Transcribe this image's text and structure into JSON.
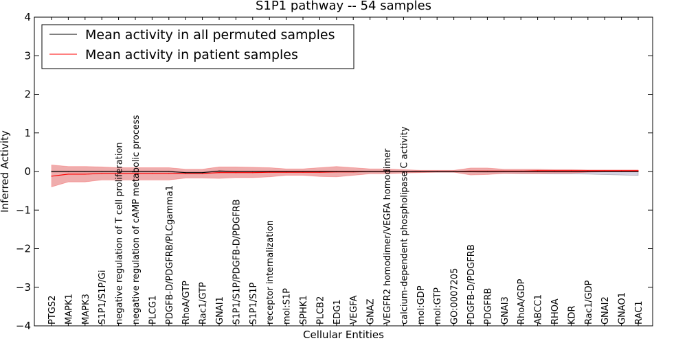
{
  "chart_data": {
    "type": "line",
    "title": "S1P1 pathway -- 54 samples",
    "xlabel": "Cellular Entities",
    "ylabel": "Inferred Activity",
    "ylim": [
      -4,
      4
    ],
    "yticks": [
      -4,
      -3,
      -2,
      -1,
      0,
      1,
      2,
      3,
      4
    ],
    "ytick_labels": [
      "−4",
      "−3",
      "−2",
      "−1",
      "0",
      "1",
      "2",
      "3",
      "4"
    ],
    "legend_position": "top-left",
    "categories": [
      "PTGS2",
      "MAPK1",
      "MAPK3",
      "S1P1/S1P/Gi",
      "negative regulation of T cell proliferation",
      "negative regulation of cAMP metabolic process",
      "PLCG1",
      "PDGFB-D/PDGFRB/PLCgamma1",
      "RhoA/GTP",
      "Rac1/GTP",
      "GNAI1",
      "S1P1/S1P/PDGFB-D/PDGFRB",
      "S1P1/S1P",
      "receptor internalization",
      "mol:S1P",
      "SPHK1",
      "PLCB2",
      "EDG1",
      "VEGFA",
      "GNAZ",
      "VEGFR2 homodimer/VEGFA homodimer",
      "calcium-dependent phospholipase C activity",
      "mol:GDP",
      "mol:GTP",
      "GO:0007205",
      "PDGFB-D/PDGFRB",
      "PDGFRB",
      "GNAI3",
      "RhoA/GDP",
      "ABCC1",
      "RHOA",
      "KDR",
      "Rac1/GDP",
      "GNAI2",
      "GNAO1",
      "RAC1"
    ],
    "series": [
      {
        "name": "Mean activity in all permuted samples",
        "color": "#000000",
        "band_color": "#b8b8d0",
        "values": [
          0,
          0,
          0,
          0,
          0,
          0,
          0,
          0,
          -0.03,
          -0.03,
          0.01,
          0,
          0,
          0,
          0,
          0,
          0,
          0,
          0,
          0,
          0,
          0,
          0,
          0,
          0,
          0,
          0,
          0,
          0,
          0,
          0,
          0,
          0,
          0,
          0,
          0
        ],
        "lower": [
          -0.02,
          -0.02,
          -0.02,
          -0.02,
          -0.02,
          -0.02,
          -0.02,
          -0.02,
          -0.06,
          -0.06,
          -0.02,
          -0.02,
          -0.02,
          -0.02,
          -0.02,
          -0.02,
          -0.02,
          -0.02,
          -0.02,
          -0.02,
          -0.02,
          -0.02,
          -0.02,
          -0.02,
          -0.02,
          -0.02,
          -0.03,
          -0.04,
          -0.05,
          -0.05,
          -0.06,
          -0.06,
          -0.07,
          -0.08,
          -0.09,
          -0.1
        ],
        "upper": [
          0.02,
          0.02,
          0.02,
          0.02,
          0.02,
          0.02,
          0.02,
          0.02,
          0.0,
          0.0,
          0.03,
          0.02,
          0.02,
          0.02,
          0.02,
          0.02,
          0.02,
          0.02,
          0.02,
          0.02,
          0.02,
          0.02,
          0.02,
          0.02,
          0.02,
          0.02,
          0.02,
          0.02,
          0.02,
          0.02,
          0.02,
          0.02,
          0.02,
          0.02,
          0.02,
          0.02
        ]
      },
      {
        "name": "Mean activity in patient samples",
        "color": "#ff0000",
        "band_color": "#e88a8a",
        "values": [
          -0.12,
          -0.07,
          -0.07,
          -0.05,
          -0.05,
          -0.05,
          -0.05,
          -0.05,
          -0.05,
          -0.05,
          -0.03,
          -0.03,
          -0.03,
          -0.02,
          -0.02,
          -0.02,
          -0.02,
          -0.01,
          -0.01,
          0,
          0,
          0,
          0,
          0,
          0,
          0.01,
          0.01,
          0.01,
          0.01,
          0.02,
          0.02,
          0.02,
          0.02,
          0.02,
          0.02,
          0.02
        ],
        "lower": [
          -0.4,
          -0.27,
          -0.27,
          -0.22,
          -0.22,
          -0.22,
          -0.22,
          -0.22,
          -0.17,
          -0.17,
          -0.18,
          -0.16,
          -0.16,
          -0.14,
          -0.1,
          -0.1,
          -0.13,
          -0.14,
          -0.1,
          -0.06,
          -0.06,
          -0.04,
          -0.03,
          -0.02,
          -0.02,
          -0.09,
          -0.08,
          -0.05,
          -0.05,
          -0.05,
          -0.04,
          -0.04,
          -0.02,
          -0.01,
          -0.01,
          -0.01
        ],
        "upper": [
          0.17,
          0.13,
          0.13,
          0.12,
          0.1,
          0.1,
          0.1,
          0.1,
          0.06,
          0.06,
          0.12,
          0.12,
          0.11,
          0.1,
          0.07,
          0.07,
          0.1,
          0.13,
          0.1,
          0.07,
          0.07,
          0.05,
          0.03,
          0.03,
          0.03,
          0.09,
          0.09,
          0.06,
          0.06,
          0.06,
          0.05,
          0.05,
          0.04,
          0.04,
          0.04,
          0.04
        ]
      }
    ]
  }
}
